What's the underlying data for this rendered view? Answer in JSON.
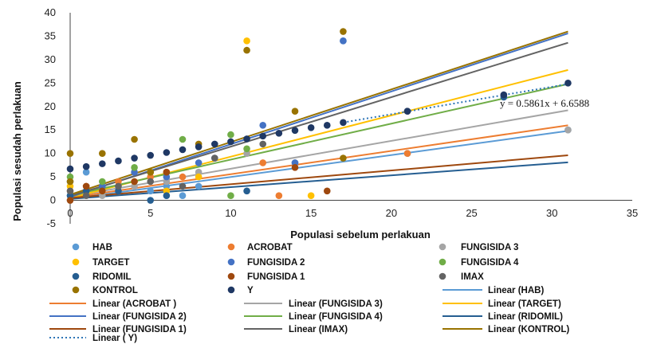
{
  "chart_data": {
    "type": "scatter",
    "xlabel": "Populasi sebelum perlakuan",
    "ylabel": "Populasi sesudah perlakuan",
    "xlim": [
      0,
      35
    ],
    "ylim": [
      -5,
      40
    ],
    "x_ticks": [
      0,
      5,
      10,
      15,
      20,
      25,
      30,
      35
    ],
    "y_ticks": [
      -5,
      0,
      5,
      10,
      15,
      20,
      25,
      30,
      35,
      40
    ],
    "grid": false,
    "legend_position": "bottom",
    "equation": "y = 0.5861x + 6.6588",
    "series": [
      {
        "name": "HAB",
        "color": "#5b9bd5",
        "points": [
          [
            0,
            1
          ],
          [
            1,
            6
          ],
          [
            2,
            2
          ],
          [
            3,
            3
          ],
          [
            5,
            2
          ],
          [
            6,
            3
          ],
          [
            7,
            1
          ],
          [
            8,
            3
          ],
          [
            17,
            34
          ],
          [
            21,
            10
          ],
          [
            31,
            15
          ]
        ]
      },
      {
        "name": "ACROBAT",
        "color": "#ed7d31",
        "points": [
          [
            0,
            2
          ],
          [
            1,
            3
          ],
          [
            3,
            4
          ],
          [
            5,
            5
          ],
          [
            6,
            6
          ],
          [
            7,
            5
          ],
          [
            12,
            8
          ],
          [
            13,
            1
          ],
          [
            21,
            10
          ]
        ]
      },
      {
        "name": "FUNGISIDA 3",
        "color": "#a5a5a5",
        "points": [
          [
            0,
            0
          ],
          [
            2,
            1
          ],
          [
            4,
            3
          ],
          [
            6,
            4
          ],
          [
            8,
            6
          ],
          [
            11,
            10
          ],
          [
            14,
            8
          ],
          [
            31,
            15
          ]
        ]
      },
      {
        "name": "TARGET",
        "color": "#ffc000",
        "points": [
          [
            0,
            3
          ],
          [
            2,
            2
          ],
          [
            4,
            4
          ],
          [
            6,
            2
          ],
          [
            8,
            5
          ],
          [
            11,
            34
          ],
          [
            15,
            1
          ]
        ]
      },
      {
        "name": "FUNGISIDA 2",
        "color": "#4472c4",
        "points": [
          [
            0,
            4
          ],
          [
            2,
            3
          ],
          [
            4,
            6
          ],
          [
            6,
            5
          ],
          [
            8,
            8
          ],
          [
            9,
            9
          ],
          [
            12,
            16
          ],
          [
            14,
            8
          ],
          [
            17,
            34
          ]
        ]
      },
      {
        "name": "FUNGISIDA 4",
        "color": "#70ad47",
        "points": [
          [
            0,
            5
          ],
          [
            2,
            4
          ],
          [
            4,
            7
          ],
          [
            5,
            6
          ],
          [
            7,
            13
          ],
          [
            10,
            14
          ],
          [
            10,
            1
          ],
          [
            11,
            11
          ]
        ]
      },
      {
        "name": "RIDOMIL",
        "color": "#255e91",
        "points": [
          [
            0,
            1
          ],
          [
            1,
            2
          ],
          [
            3,
            2
          ],
          [
            5,
            0
          ],
          [
            6,
            1
          ],
          [
            11,
            2
          ],
          [
            27,
            22
          ]
        ]
      },
      {
        "name": "FUNGISIDA 1",
        "color": "#9e480e",
        "points": [
          [
            0,
            0
          ],
          [
            1,
            3
          ],
          [
            2,
            2
          ],
          [
            4,
            4
          ],
          [
            6,
            6
          ],
          [
            14,
            7
          ],
          [
            16,
            2
          ]
        ]
      },
      {
        "name": "IMAX",
        "color": "#636363",
        "points": [
          [
            0,
            2
          ],
          [
            1,
            1
          ],
          [
            3,
            3
          ],
          [
            5,
            4
          ],
          [
            7,
            3
          ],
          [
            9,
            9
          ],
          [
            12,
            12
          ],
          [
            21,
            19
          ]
        ]
      },
      {
        "name": "KONTROL",
        "color": "#997300",
        "points": [
          [
            0,
            10
          ],
          [
            0,
            4
          ],
          [
            2,
            10
          ],
          [
            4,
            13
          ],
          [
            5,
            6
          ],
          [
            8,
            12
          ],
          [
            11,
            32
          ],
          [
            14,
            19
          ],
          [
            17,
            36
          ],
          [
            17,
            9
          ]
        ]
      },
      {
        "name": "Y",
        "color": "#1f3864",
        "points": [
          [
            0,
            6.7
          ],
          [
            1,
            7.2
          ],
          [
            2,
            7.8
          ],
          [
            3,
            8.4
          ],
          [
            4,
            9
          ],
          [
            5,
            9.6
          ],
          [
            6,
            10.2
          ],
          [
            7,
            10.8
          ],
          [
            8,
            11.4
          ],
          [
            9,
            12
          ],
          [
            10,
            12.5
          ],
          [
            11,
            13.1
          ],
          [
            12,
            13.7
          ],
          [
            13,
            14.3
          ],
          [
            14,
            14.9
          ],
          [
            15,
            15.5
          ],
          [
            16,
            16.0
          ],
          [
            17,
            16.6
          ],
          [
            21,
            19
          ],
          [
            27,
            22.5
          ],
          [
            31,
            25
          ]
        ]
      }
    ],
    "trendlines": [
      {
        "name": "Linear (HAB)",
        "color": "#5b9bd5",
        "style": "solid",
        "x": [
          0,
          31
        ],
        "y": [
          0.3,
          14.8
        ]
      },
      {
        "name": "Linear (ACROBAT )",
        "color": "#ed7d31",
        "style": "solid",
        "x": [
          0,
          31
        ],
        "y": [
          0.6,
          16
        ]
      },
      {
        "name": "Linear (FUNGISIDA 3)",
        "color": "#a5a5a5",
        "style": "solid",
        "x": [
          0,
          31
        ],
        "y": [
          0.8,
          19.2
        ]
      },
      {
        "name": "Linear (TARGET)",
        "color": "#ffc000",
        "style": "solid",
        "x": [
          0,
          31
        ],
        "y": [
          0.5,
          27.8
        ]
      },
      {
        "name": "Linear (FUNGISIDA 2)",
        "color": "#4472c4",
        "style": "solid",
        "x": [
          0,
          31
        ],
        "y": [
          0.7,
          35.6
        ]
      },
      {
        "name": "Linear (FUNGISIDA 4)",
        "color": "#70ad47",
        "style": "solid",
        "x": [
          0,
          31
        ],
        "y": [
          1.0,
          24.8
        ]
      },
      {
        "name": "Linear (RIDOMIL)",
        "color": "#255e91",
        "style": "solid",
        "x": [
          0,
          31
        ],
        "y": [
          0.3,
          8.1
        ]
      },
      {
        "name": "Linear (FUNGISIDA 1)",
        "color": "#9e480e",
        "style": "solid",
        "x": [
          0,
          31
        ],
        "y": [
          0.5,
          9.6
        ]
      },
      {
        "name": "Linear (IMAX)",
        "color": "#636363",
        "style": "solid",
        "x": [
          0,
          31
        ],
        "y": [
          0.9,
          33.6
        ]
      },
      {
        "name": "Linear (KONTROL)",
        "color": "#997300",
        "style": "solid",
        "x": [
          0,
          31
        ],
        "y": [
          1.2,
          36
        ]
      },
      {
        "name": "Linear ( Y)",
        "color": "#2e75b6",
        "style": "dotted",
        "x": [
          17,
          31
        ],
        "y": [
          16.6,
          24.8
        ]
      }
    ]
  }
}
